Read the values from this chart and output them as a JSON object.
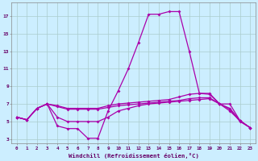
{
  "x": [
    0,
    1,
    2,
    3,
    4,
    5,
    6,
    7,
    8,
    9,
    10,
    11,
    12,
    13,
    14,
    15,
    16,
    17,
    18,
    19,
    20,
    21,
    22,
    23
  ],
  "line1": [
    5.5,
    5.2,
    6.5,
    7.0,
    4.5,
    4.2,
    4.2,
    3.1,
    3.1,
    6.2,
    8.5,
    11.0,
    14.0,
    17.2,
    17.2,
    17.5,
    17.5,
    13.0,
    8.2,
    8.2,
    7.0,
    6.2,
    5.1,
    4.3
  ],
  "line2": [
    5.5,
    5.2,
    6.5,
    7.0,
    6.8,
    6.5,
    6.5,
    6.5,
    6.5,
    6.8,
    7.0,
    7.1,
    7.2,
    7.3,
    7.4,
    7.5,
    7.8,
    8.1,
    8.2,
    8.1,
    7.0,
    7.0,
    5.1,
    4.3
  ],
  "line3": [
    5.5,
    5.2,
    6.5,
    7.0,
    6.7,
    6.4,
    6.4,
    6.4,
    6.4,
    6.6,
    6.8,
    6.9,
    7.0,
    7.1,
    7.2,
    7.3,
    7.4,
    7.6,
    7.7,
    7.7,
    7.0,
    6.5,
    5.1,
    4.3
  ],
  "line4": [
    5.5,
    5.2,
    6.5,
    7.0,
    5.5,
    5.0,
    5.0,
    5.0,
    5.0,
    5.5,
    6.2,
    6.5,
    6.8,
    7.0,
    7.1,
    7.2,
    7.3,
    7.4,
    7.5,
    7.6,
    7.0,
    6.4,
    5.0,
    4.3
  ],
  "color": "#aa00aa",
  "bg_color": "#cceeff",
  "grid_color": "#aacccc",
  "ylabel_ticks": [
    3,
    5,
    7,
    9,
    11,
    13,
    15,
    17
  ],
  "xlabel": "Windchill (Refroidissement éolien,°C)",
  "ylim": [
    2.5,
    18.5
  ],
  "xlim": [
    -0.5,
    23.5
  ]
}
